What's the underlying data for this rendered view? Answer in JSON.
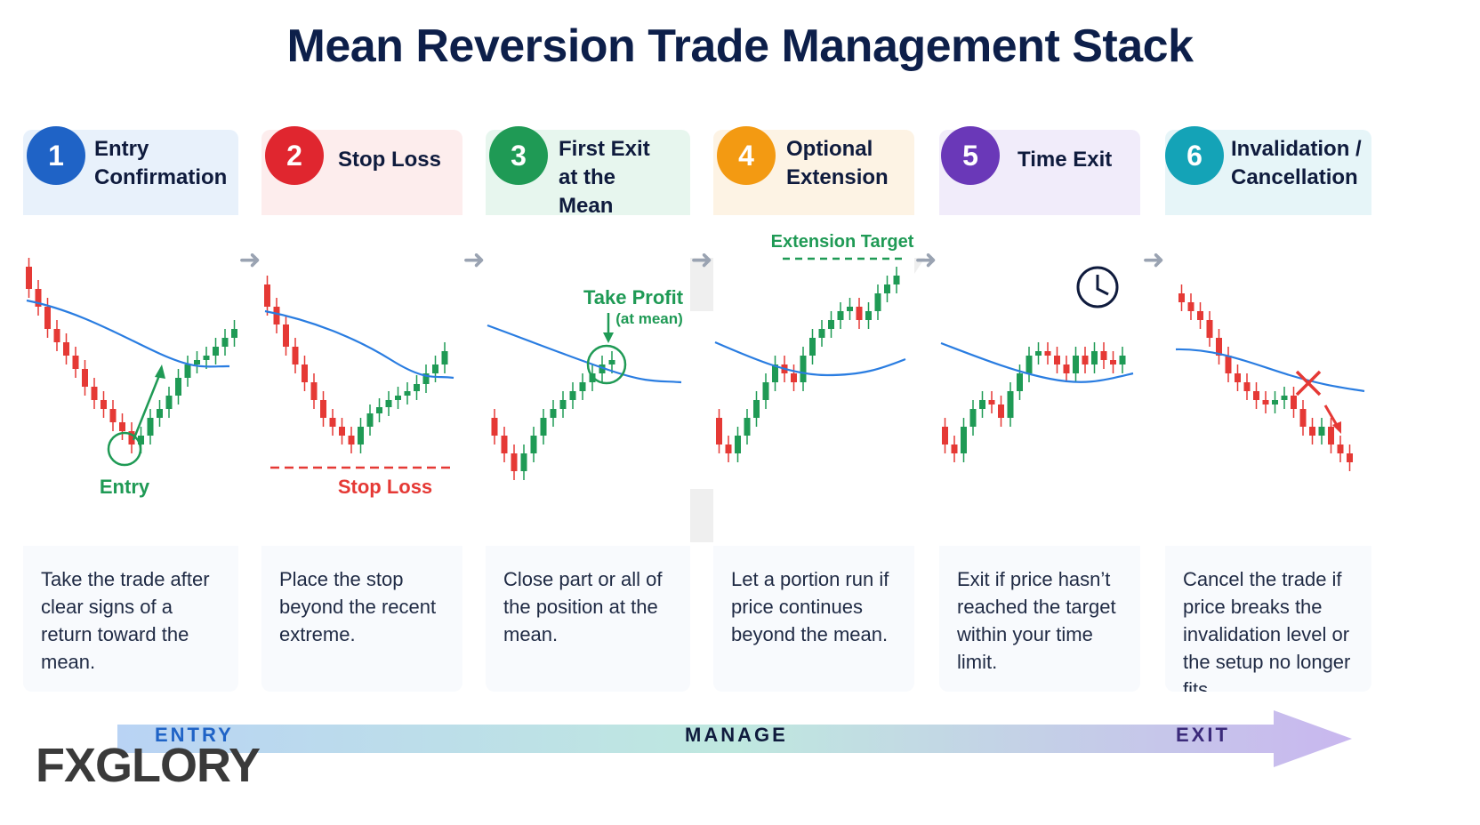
{
  "title": "Mean Reversion Trade Management Stack",
  "steps": [
    {
      "num": "1",
      "title": "Entry Confirmation",
      "desc": "Take the trade after clear signs of a return toward the mean.",
      "color": "#1f63c6",
      "tint": "#e8f1fb",
      "chart_label": "Entry"
    },
    {
      "num": "2",
      "title": "Stop Loss",
      "desc": "Place the stop beyond the recent extreme.",
      "color": "#e0262f",
      "tint": "#fdeded",
      "chart_label": "Stop Loss"
    },
    {
      "num": "3",
      "title": "First Exit at the Mean",
      "desc": "Close part or all of the position at the mean.",
      "color": "#1f9a55",
      "tint": "#e7f6ee",
      "chart_label": "Take Profit",
      "chart_sublabel": "(at mean)"
    },
    {
      "num": "4",
      "title": "Optional Extension",
      "desc": "Let a portion run if price continues beyond the mean.",
      "color": "#f39a12",
      "tint": "#fdf3e4",
      "chart_label": "Extension Target"
    },
    {
      "num": "5",
      "title": "Time Exit",
      "desc": "Exit if price hasn’t reached the target within your time limit.",
      "color": "#6a38b8",
      "tint": "#f1ecfa",
      "chart_label": ""
    },
    {
      "num": "6",
      "title": "Invalidation / Cancellation",
      "desc": "Cancel the trade if price breaks the invalidation level or the setup no longer fits.",
      "color": "#14a3b7",
      "tint": "#e6f5f8",
      "chart_label": ""
    }
  ],
  "flow": {
    "entry": "ENTRY",
    "manage": "MANAGE",
    "exit": "EXIT"
  },
  "logo": "FXGLORY",
  "colors": {
    "bull": "#1f9a55",
    "bear": "#e53935",
    "mean": "#2a7de1"
  }
}
